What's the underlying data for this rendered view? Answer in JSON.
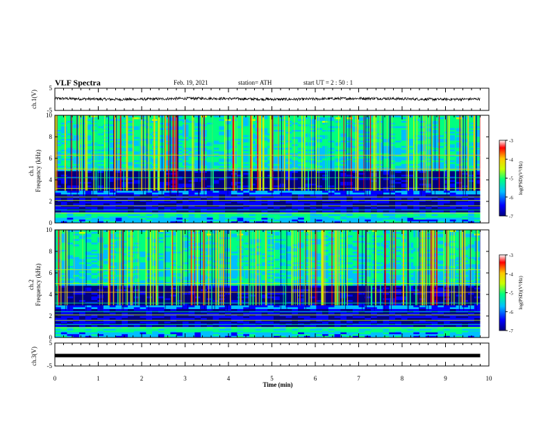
{
  "header": {
    "title": "VLF Spectra",
    "date": "Feb. 19, 2021",
    "station": "station= ATH",
    "start_ut": "start  UT =   2  : 50 : 1"
  },
  "chart_data": [
    {
      "type": "line",
      "panel": "ch1-waveform",
      "ylabel": "ch.1(V)",
      "ylim": [
        -5,
        5
      ],
      "yticks": [
        "5",
        "-5"
      ],
      "xlim": [
        0,
        10
      ],
      "data_extent_min": [
        0,
        9.8
      ],
      "baseline_v": 0.2,
      "noise_amplitude_v": 0.6
    },
    {
      "type": "heatmap",
      "panel": "ch1-spectrogram",
      "ylabel": "ch.1\nFrequency (kHz)",
      "ylim": [
        0,
        10
      ],
      "yticks": [
        "0",
        "2",
        "4",
        "6",
        "8",
        "10"
      ],
      "xlim": [
        0,
        10
      ],
      "data_extent_min": [
        0,
        9.8
      ],
      "colorbar": {
        "label": "log(PSD)(V²/Hz)",
        "range": [
          -7,
          -3
        ],
        "ticks": [
          "-3",
          "-4",
          "-5",
          "-6",
          "-7"
        ],
        "colormap": [
          "#000080",
          "#0000ff",
          "#00bfff",
          "#00ff80",
          "#c8ff00",
          "#ffc800",
          "#ff0000",
          "#ffffff"
        ]
      },
      "bands_khz": [
        [
          0.4,
          0.8
        ],
        [
          1.0,
          2.5
        ],
        [
          3.0,
          4.8
        ],
        [
          5.0,
          10.0
        ]
      ]
    },
    {
      "type": "heatmap",
      "panel": "ch2-spectrogram",
      "ylabel": "ch.2\nFrequency (kHz)",
      "ylim": [
        0,
        10
      ],
      "yticks": [
        "0",
        "2",
        "4",
        "6",
        "8",
        "10"
      ],
      "xlim": [
        0,
        10
      ],
      "data_extent_min": [
        0,
        9.8
      ],
      "colorbar": {
        "label": "log(PSD)(V²/Hz)",
        "range": [
          -7,
          -3
        ],
        "ticks": [
          "-3",
          "-4",
          "-5",
          "-6",
          "-7"
        ],
        "colormap": [
          "#000080",
          "#0000ff",
          "#00bfff",
          "#00ff80",
          "#c8ff00",
          "#ffc800",
          "#ff0000",
          "#ffffff"
        ]
      },
      "bands_khz": [
        [
          0.4,
          1.0
        ],
        [
          1.2,
          2.6
        ],
        [
          3.0,
          4.6
        ],
        [
          4.6,
          10.0
        ]
      ]
    },
    {
      "type": "line",
      "panel": "ch3-waveform",
      "ylabel": "ch.3(V)",
      "ylim": [
        -5,
        5
      ],
      "yticks": [
        "5",
        "-5"
      ],
      "xlim": [
        0,
        10
      ],
      "data_extent_min": [
        0,
        9.8
      ],
      "baseline_v": 0.0,
      "noise_amplitude_v": 0.0
    }
  ],
  "xaxis": {
    "label": "Time (min)",
    "ticks": [
      "0",
      "1",
      "2",
      "3",
      "4",
      "5",
      "6",
      "7",
      "8",
      "9",
      "10"
    ]
  }
}
